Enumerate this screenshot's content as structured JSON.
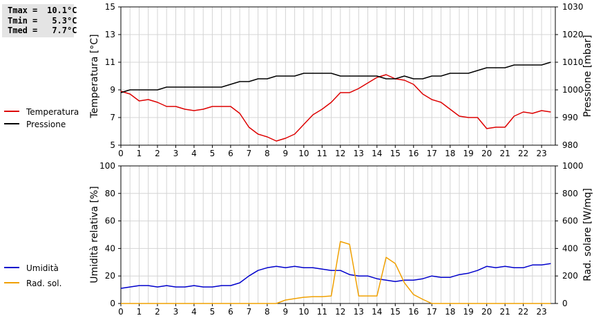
{
  "summary": [
    {
      "label": "Tmax",
      "value": "10.1°C"
    },
    {
      "label": "Tmin",
      "value": "5.3°C"
    },
    {
      "label": "Tmed",
      "value": "7.7°C"
    }
  ],
  "chart_data": [
    {
      "type": "line",
      "x_ticks": [
        0,
        1,
        2,
        3,
        4,
        5,
        6,
        7,
        8,
        9,
        10,
        11,
        12,
        13,
        14,
        15,
        16,
        17,
        18,
        19,
        20,
        21,
        22,
        23
      ],
      "xlim": [
        0,
        23.75
      ],
      "y_left": {
        "label": "Temperatura [°C]",
        "ylim": [
          5,
          15
        ],
        "ticks": [
          5,
          7,
          9,
          11,
          13,
          15
        ]
      },
      "y_right": {
        "label": "Pressione [mbar]",
        "ylim": [
          980,
          1030
        ],
        "ticks": [
          980,
          990,
          1000,
          1010,
          1020,
          1030
        ]
      },
      "grid": true,
      "legend_position": "left",
      "series": [
        {
          "name": "Temperatura",
          "axis": "left",
          "color": "#dd0000",
          "points": [
            [
              0,
              8.9
            ],
            [
              0.5,
              8.7
            ],
            [
              1,
              8.2
            ],
            [
              1.5,
              8.3
            ],
            [
              2,
              8.1
            ],
            [
              2.5,
              7.8
            ],
            [
              3,
              7.8
            ],
            [
              3.5,
              7.6
            ],
            [
              4,
              7.5
            ],
            [
              4.5,
              7.6
            ],
            [
              5,
              7.8
            ],
            [
              5.5,
              7.8
            ],
            [
              6,
              7.8
            ],
            [
              6.5,
              7.3
            ],
            [
              7,
              6.3
            ],
            [
              7.5,
              5.8
            ],
            [
              8,
              5.6
            ],
            [
              8.5,
              5.3
            ],
            [
              9,
              5.5
            ],
            [
              9.5,
              5.8
            ],
            [
              10,
              6.5
            ],
            [
              10.5,
              7.2
            ],
            [
              11,
              7.6
            ],
            [
              11.5,
              8.1
            ],
            [
              12,
              8.8
            ],
            [
              12.5,
              8.8
            ],
            [
              13,
              9.1
            ],
            [
              13.5,
              9.5
            ],
            [
              14,
              9.9
            ],
            [
              14.5,
              10.1
            ],
            [
              15,
              9.8
            ],
            [
              15.5,
              9.7
            ],
            [
              16,
              9.4
            ],
            [
              16.5,
              8.7
            ],
            [
              17,
              8.3
            ],
            [
              17.5,
              8.1
            ],
            [
              18,
              7.6
            ],
            [
              18.5,
              7.1
            ],
            [
              19,
              7.0
            ],
            [
              19.5,
              7.0
            ],
            [
              20,
              6.2
            ],
            [
              20.5,
              6.3
            ],
            [
              21,
              6.3
            ],
            [
              21.5,
              7.1
            ],
            [
              22,
              7.4
            ],
            [
              22.5,
              7.3
            ],
            [
              23,
              7.5
            ],
            [
              23.5,
              7.4
            ]
          ]
        },
        {
          "name": "Pressione",
          "axis": "right",
          "color": "#000000",
          "points": [
            [
              0,
              999
            ],
            [
              0.5,
              1000
            ],
            [
              1,
              1000
            ],
            [
              1.5,
              1000
            ],
            [
              2,
              1000
            ],
            [
              2.5,
              1001
            ],
            [
              3,
              1001
            ],
            [
              3.5,
              1001
            ],
            [
              4,
              1001
            ],
            [
              4.5,
              1001
            ],
            [
              5,
              1001
            ],
            [
              5.5,
              1001
            ],
            [
              6,
              1002
            ],
            [
              6.5,
              1003
            ],
            [
              7,
              1003
            ],
            [
              7.5,
              1004
            ],
            [
              8,
              1004
            ],
            [
              8.5,
              1005
            ],
            [
              9,
              1005
            ],
            [
              9.5,
              1005
            ],
            [
              10,
              1006
            ],
            [
              10.5,
              1006
            ],
            [
              11,
              1006
            ],
            [
              11.5,
              1006
            ],
            [
              12,
              1005
            ],
            [
              12.5,
              1005
            ],
            [
              13,
              1005
            ],
            [
              13.5,
              1005
            ],
            [
              14,
              1005
            ],
            [
              14.5,
              1004
            ],
            [
              15,
              1004
            ],
            [
              15.5,
              1005
            ],
            [
              16,
              1004
            ],
            [
              16.5,
              1004
            ],
            [
              17,
              1005
            ],
            [
              17.5,
              1005
            ],
            [
              18,
              1006
            ],
            [
              18.5,
              1006
            ],
            [
              19,
              1006
            ],
            [
              19.5,
              1007
            ],
            [
              20,
              1008
            ],
            [
              20.5,
              1008
            ],
            [
              21,
              1008
            ],
            [
              21.5,
              1009
            ],
            [
              22,
              1009
            ],
            [
              22.5,
              1009
            ],
            [
              23,
              1009
            ],
            [
              23.5,
              1010
            ]
          ]
        }
      ]
    },
    {
      "type": "line",
      "x_ticks": [
        0,
        1,
        2,
        3,
        4,
        5,
        6,
        7,
        8,
        9,
        10,
        11,
        12,
        13,
        14,
        15,
        16,
        17,
        18,
        19,
        20,
        21,
        22,
        23
      ],
      "xlim": [
        0,
        23.75
      ],
      "y_left": {
        "label": "Umidità relativa [%]",
        "ylim": [
          0,
          100
        ],
        "ticks": [
          0,
          20,
          40,
          60,
          80,
          100
        ]
      },
      "y_right": {
        "label": "Rad. solare [W/mq]",
        "ylim": [
          0,
          1000
        ],
        "ticks": [
          0,
          200,
          400,
          600,
          800,
          1000
        ]
      },
      "grid": true,
      "legend_position": "left",
      "series": [
        {
          "name": "Umidità",
          "axis": "left",
          "color": "#0000cc",
          "points": [
            [
              0,
              11
            ],
            [
              0.5,
              12
            ],
            [
              1,
              13
            ],
            [
              1.5,
              13
            ],
            [
              2,
              12
            ],
            [
              2.5,
              13
            ],
            [
              3,
              12
            ],
            [
              3.5,
              12
            ],
            [
              4,
              13
            ],
            [
              4.5,
              12
            ],
            [
              5,
              12
            ],
            [
              5.5,
              13
            ],
            [
              6,
              13
            ],
            [
              6.5,
              15
            ],
            [
              7,
              20
            ],
            [
              7.5,
              24
            ],
            [
              8,
              26
            ],
            [
              8.5,
              27
            ],
            [
              9,
              26
            ],
            [
              9.5,
              27
            ],
            [
              10,
              26
            ],
            [
              10.5,
              26
            ],
            [
              11,
              25
            ],
            [
              11.5,
              24
            ],
            [
              12,
              24
            ],
            [
              12.5,
              21
            ],
            [
              13,
              20
            ],
            [
              13.5,
              20
            ],
            [
              14,
              18
            ],
            [
              14.5,
              17
            ],
            [
              15,
              16
            ],
            [
              15.5,
              17
            ],
            [
              16,
              17
            ],
            [
              16.5,
              18
            ],
            [
              17,
              20
            ],
            [
              17.5,
              19
            ],
            [
              18,
              19
            ],
            [
              18.5,
              21
            ],
            [
              19,
              22
            ],
            [
              19.5,
              24
            ],
            [
              20,
              27
            ],
            [
              20.5,
              26
            ],
            [
              21,
              27
            ],
            [
              21.5,
              26
            ],
            [
              22,
              26
            ],
            [
              22.5,
              28
            ],
            [
              23,
              28
            ],
            [
              23.5,
              29
            ]
          ]
        },
        {
          "name": "Rad. sol.",
          "axis": "right",
          "color": "#f0a000",
          "points": [
            [
              0,
              0
            ],
            [
              1,
              0
            ],
            [
              2,
              0
            ],
            [
              3,
              0
            ],
            [
              4,
              0
            ],
            [
              5,
              0
            ],
            [
              6,
              0
            ],
            [
              7,
              0
            ],
            [
              8,
              0
            ],
            [
              8.5,
              0
            ],
            [
              9,
              25
            ],
            [
              9.5,
              35
            ],
            [
              10,
              45
            ],
            [
              10.5,
              50
            ],
            [
              11,
              50
            ],
            [
              11.5,
              55
            ],
            [
              12,
              450
            ],
            [
              12.5,
              430
            ],
            [
              13,
              55
            ],
            [
              13.5,
              55
            ],
            [
              14,
              55
            ],
            [
              14.5,
              335
            ],
            [
              15,
              290
            ],
            [
              15.5,
              150
            ],
            [
              16,
              65
            ],
            [
              16.5,
              30
            ],
            [
              17,
              0
            ],
            [
              18,
              0
            ],
            [
              19,
              0
            ],
            [
              20,
              0
            ],
            [
              21,
              0
            ],
            [
              22,
              0
            ],
            [
              23,
              0
            ],
            [
              23.5,
              0
            ]
          ]
        }
      ]
    }
  ]
}
